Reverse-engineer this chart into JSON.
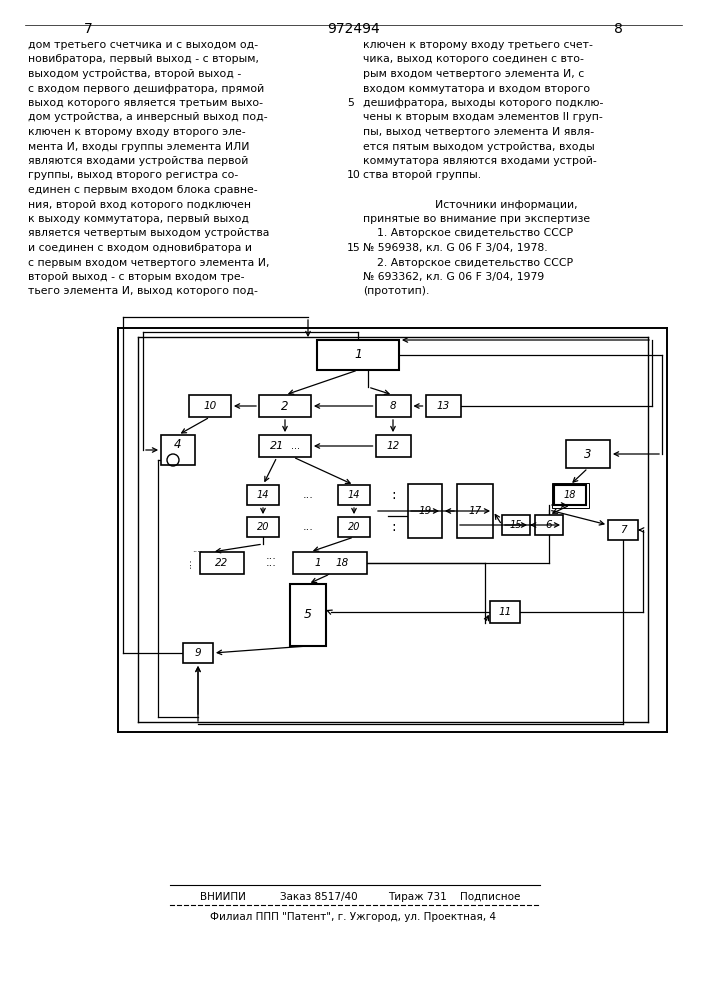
{
  "page_num_left": "7",
  "patent_number": "972494",
  "page_num_right": "8",
  "text_left": [
    "дом третьего счетчика и с выходом од-",
    "новибратора, первый выход - с вторым,",
    "выходом устройства, второй выход -",
    "с входом первого дешифратора, прямой",
    "выход которого является третьим выхо-",
    "дом устройства, а инверсный выход под-",
    "ключен к второму входу второго эле-",
    "мента И, входы группы элемента ИЛИ",
    "являются входами устройства первой",
    "группы, выход второго регистра со-",
    "единен с первым входом блока сравне-",
    "ния, второй вход которого подключен",
    "к выходу коммутатора, первый выход",
    "является четвертым выходом устройства",
    "и соединен с входом одновибратора и",
    "с первым входом четвертого элемента И,",
    "второй выход - с вторым входом тре-",
    "тьего элемента И, выход которого под-"
  ],
  "text_right": [
    "ключен к второму входу третьего счет-",
    "чика, выход которого соединен с вто-",
    "рым входом четвертого элемента И, с",
    "входом коммутатора и входом второго",
    "дешифратора, выходы которого подклю-",
    "чены к вторым входам элементов II груп-",
    "пы, выход четвертого элемента И явля-",
    "ется пятым выходом устройства, входы",
    "коммутатора являются входами устрой-",
    "ства второй группы."
  ],
  "sources_title": "Источники информации,",
  "sources_subtitle": "принятые во внимание при экспертизе",
  "source1": "    1. Авторское свидетельство СССР",
  "source1b": "№ 596938, кл. G 06 F 3/04, 1978.",
  "source2": "    2. Авторское свидетельство СССР",
  "source2b": "№ 693362, кл. G 06 F 3/04, 1979",
  "source2c": "(прототип).",
  "bottom_org": "ВНИИПИ",
  "bottom_order": "Заказ 8517/40",
  "bottom_tirazh": "Тираж 731",
  "bottom_sign": "Подписное",
  "bottom_line2": "Филиал ППП \"Патент\", г. Ужгород, ул. Проектная, 4",
  "bg_color": "#ffffff"
}
